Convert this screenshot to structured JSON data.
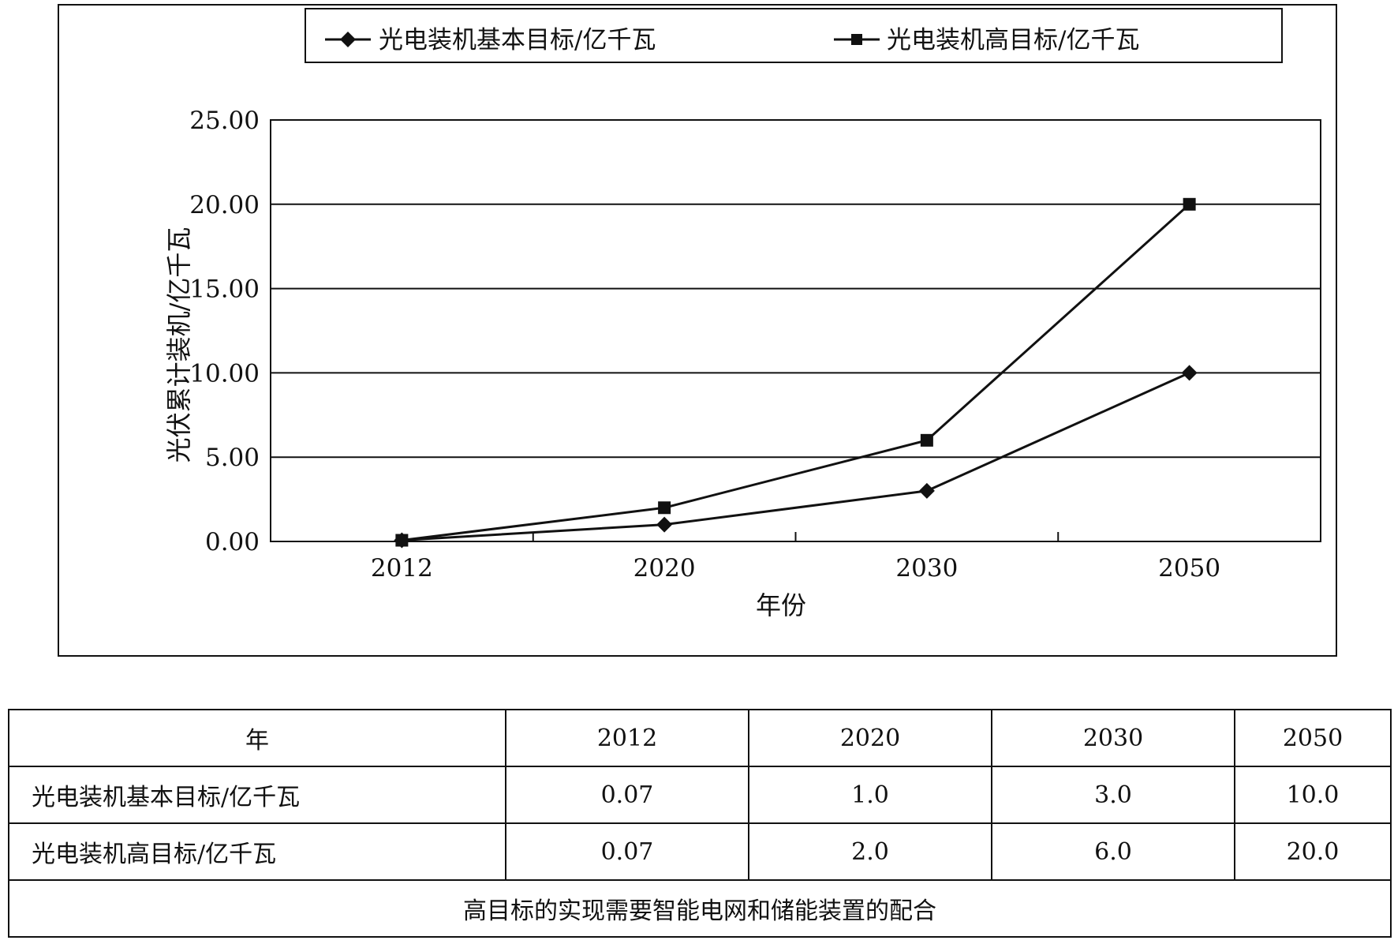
{
  "chart_data": {
    "type": "line",
    "xlabel": "年份",
    "ylabel": "光伏累计装机/亿千瓦",
    "categories": [
      "2012",
      "2020",
      "2030",
      "2050"
    ],
    "ylim": [
      0,
      25
    ],
    "yticks": [
      "0.00",
      "5.00",
      "10.00",
      "15.00",
      "20.00",
      "25.00"
    ],
    "grid": true,
    "legend_position": "top",
    "series": [
      {
        "name": "光电装机基本目标/亿千瓦",
        "values": [
          0.07,
          1.0,
          3.0,
          10.0
        ],
        "marker": "diamond",
        "color": "#111111"
      },
      {
        "name": "光电装机高目标/亿千瓦",
        "values": [
          0.07,
          2.0,
          6.0,
          20.0
        ],
        "marker": "square",
        "color": "#111111"
      }
    ]
  },
  "table": {
    "header": [
      "年",
      "2012",
      "2020",
      "2030",
      "2050"
    ],
    "rows": [
      [
        "光电装机基本目标/亿千瓦",
        "0.07",
        "1.0",
        "3.0",
        "10.0"
      ],
      [
        "光电装机高目标/亿千瓦",
        "0.07",
        "2.0",
        "6.0",
        "20.0"
      ]
    ],
    "note": "高目标的实现需要智能电网和储能装置的配合"
  }
}
